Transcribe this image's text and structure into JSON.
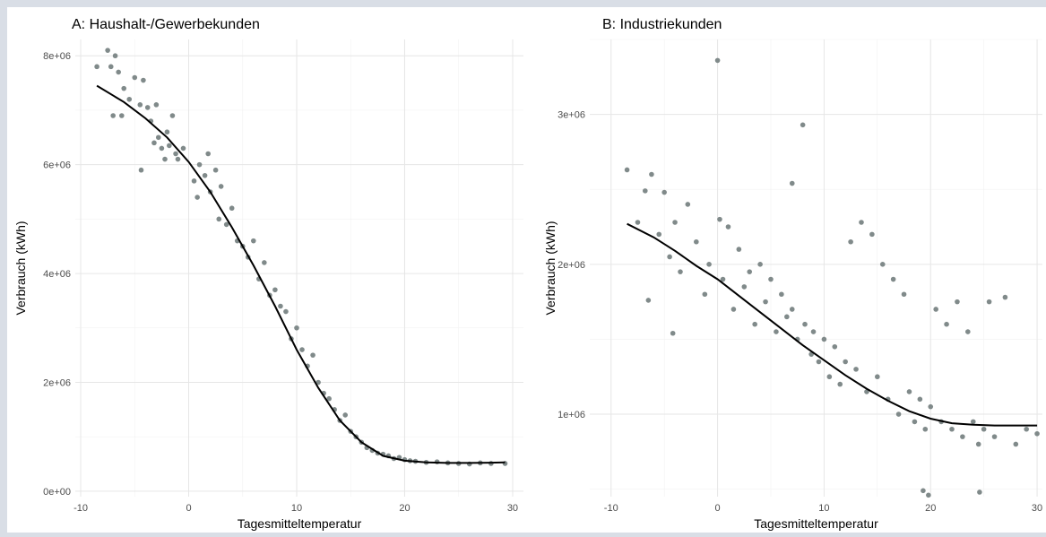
{
  "chart_data": [
    {
      "type": "scatter",
      "title": "A: Haushalt-/Gewerbekunden",
      "xlabel": "Tagesmitteltemperatur",
      "ylabel": "Verbrauch (kWh)",
      "xlim": [
        -10.5,
        31
      ],
      "ylim": [
        -100000,
        8300000
      ],
      "x_ticks": [
        -10,
        0,
        10,
        20,
        30
      ],
      "x_tick_labels": [
        "-10",
        "0",
        "10",
        "20",
        "30"
      ],
      "y_ticks": [
        0,
        2000000,
        4000000,
        6000000,
        8000000
      ],
      "y_tick_labels": [
        "0e+00",
        "2e+06",
        "4e+06",
        "6e+06",
        "8e+06"
      ],
      "grid": true,
      "point_color": "#808a8a",
      "line_color": "#000000",
      "series": [
        {
          "kind": "points",
          "x": [
            -8.5,
            -7.5,
            -7.2,
            -6.8,
            -6.5,
            -6.0,
            -5.5,
            -5.0,
            -4.5,
            -4.2,
            -3.8,
            -3.5,
            -3.0,
            -2.8,
            -2.5,
            -2.0,
            -1.8,
            -1.5,
            -1.2,
            -1.0,
            -0.5,
            -7.0,
            -6.2,
            -4.4,
            -3.2,
            -2.2,
            0.5,
            1.0,
            1.5,
            2.0,
            2.5,
            3.0,
            0.8,
            1.8,
            2.8,
            3.5,
            4.0,
            4.5,
            5.0,
            5.5,
            6.0,
            6.5,
            7.0,
            7.5,
            8.0,
            8.5,
            9.0,
            9.5,
            10.0,
            10.5,
            11.0,
            11.5,
            12.0,
            12.5,
            13.0,
            13.5,
            14.0,
            14.5,
            15.0,
            15.5,
            16.0,
            16.5,
            17.0,
            17.5,
            18.0,
            18.5,
            19.0,
            19.5,
            20.0,
            20.5,
            21.0,
            22.0,
            23.0,
            24.0,
            25.0,
            26.0,
            27.0,
            28.0,
            29.3
          ],
          "y": [
            7800000,
            8100000,
            7800000,
            8000000,
            7700000,
            7400000,
            7200000,
            7600000,
            7100000,
            7550000,
            7050000,
            6800000,
            7100000,
            6500000,
            6300000,
            6600000,
            6350000,
            6900000,
            6200000,
            6100000,
            6300000,
            6900000,
            6900000,
            5900000,
            6400000,
            6100000,
            5700000,
            6000000,
            5800000,
            5500000,
            5900000,
            5600000,
            5400000,
            6200000,
            5000000,
            4900000,
            5200000,
            4600000,
            4500000,
            4300000,
            4600000,
            3900000,
            4200000,
            3600000,
            3700000,
            3400000,
            3300000,
            2800000,
            3000000,
            2600000,
            2300000,
            2500000,
            2000000,
            1800000,
            1700000,
            1500000,
            1300000,
            1400000,
            1100000,
            1000000,
            900000,
            800000,
            750000,
            700000,
            680000,
            650000,
            600000,
            620000,
            580000,
            560000,
            550000,
            530000,
            540000,
            520000,
            510000,
            500000,
            520000,
            510000,
            510000
          ]
        },
        {
          "kind": "line",
          "x": [
            -8.5,
            -6,
            -4,
            -2,
            0,
            2,
            4,
            6,
            8,
            10,
            12,
            14,
            16,
            18,
            20,
            22,
            24,
            26,
            28,
            29.3
          ],
          "y": [
            7450000,
            7150000,
            6850000,
            6500000,
            6050000,
            5500000,
            4850000,
            4150000,
            3400000,
            2600000,
            1900000,
            1300000,
            900000,
            650000,
            560000,
            530000,
            520000,
            520000,
            525000,
            530000
          ]
        }
      ]
    },
    {
      "type": "scatter",
      "title": "B: Industriekunden",
      "xlabel": "Tagesmitteltemperatur",
      "ylabel": "Verbrauch (kWh)",
      "xlim": [
        -12,
        30.5
      ],
      "ylim": [
        450000,
        3500000
      ],
      "x_ticks": [
        -10,
        0,
        10,
        20,
        30
      ],
      "x_tick_labels": [
        "-10",
        "0",
        "10",
        "20",
        "30"
      ],
      "y_ticks": [
        1000000,
        2000000,
        3000000
      ],
      "y_tick_labels": [
        "1e+06",
        "2e+06",
        "3e+06"
      ],
      "grid": true,
      "point_color": "#808a8a",
      "line_color": "#000000",
      "series": [
        {
          "kind": "points",
          "x": [
            -8.5,
            -7.5,
            -6.8,
            -6.2,
            -5.5,
            -5.0,
            -4.5,
            -4.0,
            -3.5,
            -2.8,
            -2.0,
            -1.2,
            -0.8,
            0.0,
            0.2,
            0.5,
            1.0,
            1.5,
            2.0,
            2.5,
            3.0,
            3.5,
            4.0,
            4.5,
            5.0,
            5.5,
            6.0,
            6.5,
            7.0,
            7.5,
            8.0,
            8.2,
            8.8,
            9.0,
            9.5,
            10.0,
            10.5,
            11.0,
            11.5,
            12.0,
            12.5,
            13.0,
            13.5,
            14.0,
            14.5,
            15.0,
            15.5,
            16.0,
            16.5,
            17.0,
            17.5,
            18.0,
            18.5,
            19.0,
            19.5,
            20.0,
            20.5,
            21.0,
            21.5,
            22.0,
            22.5,
            23.0,
            23.5,
            24.0,
            24.5,
            25.0,
            25.5,
            26.0,
            27.0,
            28.0,
            29.0,
            30.0,
            19.3,
            19.8,
            24.6,
            -6.5,
            -4.2,
            7.0
          ],
          "y": [
            2630000,
            2280000,
            2490000,
            2600000,
            2200000,
            2480000,
            2050000,
            2280000,
            1950000,
            2400000,
            2150000,
            1800000,
            2000000,
            3360000,
            2300000,
            1900000,
            2250000,
            1700000,
            2100000,
            1850000,
            1950000,
            1600000,
            2000000,
            1750000,
            1900000,
            1550000,
            1800000,
            1650000,
            1700000,
            1500000,
            2930000,
            1600000,
            1400000,
            1550000,
            1350000,
            1500000,
            1250000,
            1450000,
            1200000,
            1350000,
            2150000,
            1300000,
            2280000,
            1150000,
            2200000,
            1250000,
            2000000,
            1100000,
            1900000,
            1000000,
            1800000,
            1150000,
            950000,
            1100000,
            900000,
            1050000,
            1700000,
            950000,
            1600000,
            900000,
            1750000,
            850000,
            1550000,
            950000,
            800000,
            900000,
            1750000,
            850000,
            1780000,
            800000,
            900000,
            870000,
            490000,
            460000,
            480000,
            1760000,
            1540000,
            2540000
          ]
        },
        {
          "kind": "line",
          "x": [
            -8.5,
            -6,
            -4,
            -2,
            0,
            2,
            4,
            6,
            8,
            10,
            12,
            14,
            16,
            18,
            20,
            22,
            24,
            26,
            28,
            30
          ],
          "y": [
            2270000,
            2180000,
            2090000,
            1990000,
            1900000,
            1790000,
            1680000,
            1570000,
            1460000,
            1360000,
            1260000,
            1170000,
            1090000,
            1020000,
            970000,
            940000,
            930000,
            925000,
            925000,
            925000
          ]
        }
      ]
    }
  ]
}
